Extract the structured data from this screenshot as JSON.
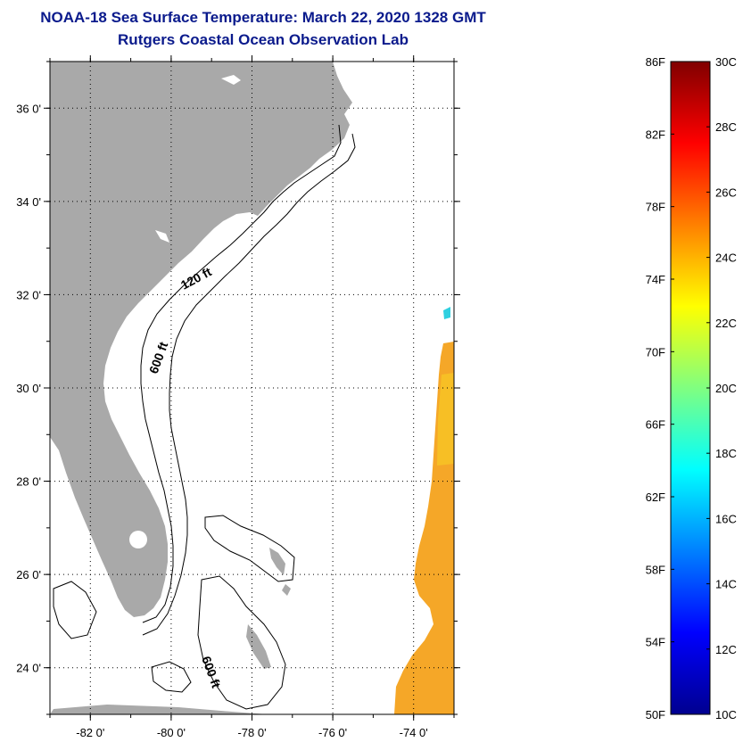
{
  "title": "NOAA-18 Sea Surface Temperature:  March 22, 2020 1328 GMT",
  "subtitle": "Rutgers Coastal Ocean Observation Lab",
  "map": {
    "lon_range": [
      -83,
      -73
    ],
    "lat_range": [
      23,
      37
    ],
    "lon_ticks": [
      {
        "value": -82,
        "label": "-82 0'"
      },
      {
        "value": -80,
        "label": "-80 0'"
      },
      {
        "value": -78,
        "label": "-78 0'"
      },
      {
        "value": -76,
        "label": "-76 0'"
      },
      {
        "value": -74,
        "label": "-74 0'"
      }
    ],
    "lat_ticks": [
      {
        "value": 36,
        "label": "36 0'"
      },
      {
        "value": 34,
        "label": "34 0'"
      },
      {
        "value": 32,
        "label": "32 0'"
      },
      {
        "value": 30,
        "label": "30 0'"
      },
      {
        "value": 28,
        "label": "28 0'"
      },
      {
        "value": 26,
        "label": "26 0'"
      },
      {
        "value": 24,
        "label": "24 0'"
      }
    ],
    "contour_labels": [
      "120 ft",
      "600 ft",
      "600 ft"
    ],
    "land_color": "#a9a9a9",
    "grid": "dotted"
  },
  "colorbar": {
    "left_labels": [
      "86F",
      "82F",
      "78F",
      "74F",
      "70F",
      "66F",
      "62F",
      "58F",
      "54F",
      "50F"
    ],
    "right_labels": [
      "30C",
      "28C",
      "26C",
      "24C",
      "22C",
      "20C",
      "18C",
      "16C",
      "14C",
      "12C",
      "10C"
    ],
    "colors": [
      "#00008f",
      "#0000ff",
      "#0080ff",
      "#00ffff",
      "#80ff80",
      "#ffff00",
      "#ff8000",
      "#ff0000",
      "#800000"
    ]
  }
}
